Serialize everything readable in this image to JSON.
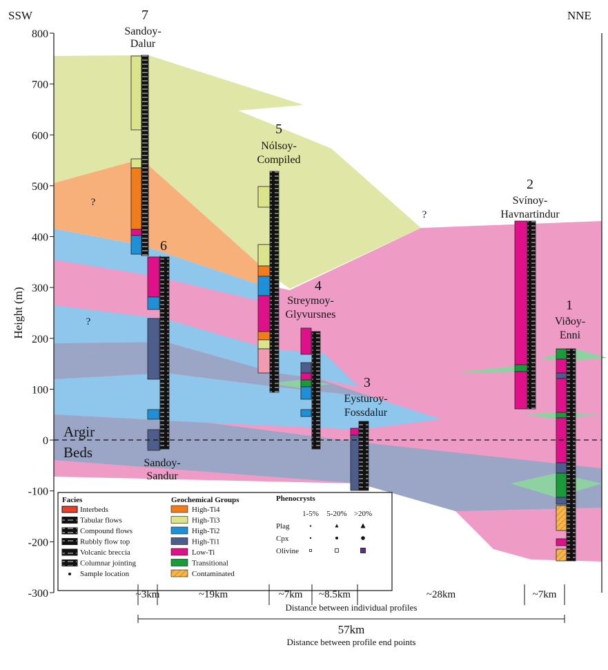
{
  "header": {
    "left": "SSW",
    "right": "NNE"
  },
  "axis": {
    "title": "Height (m)",
    "ticks": [
      800,
      700,
      600,
      500,
      400,
      300,
      200,
      100,
      0,
      -100,
      -200,
      -300
    ]
  },
  "profiles": [
    {
      "number": "7",
      "name": [
        "Sandoy-",
        "Dalur"
      ]
    },
    {
      "number": "6",
      "name": [
        "Sandoy-",
        "Sandur"
      ]
    },
    {
      "number": "5",
      "name": [
        "Nólsoy-",
        "Compiled"
      ]
    },
    {
      "number": "4",
      "name": [
        "Streymoy-",
        "Glyvursnes"
      ]
    },
    {
      "number": "3",
      "name": [
        "Eysturoy-",
        "Fossdalur"
      ]
    },
    {
      "number": "2",
      "name": [
        "Svínoy-",
        "Havnartindur"
      ]
    },
    {
      "number": "1",
      "name": [
        "Viðoy-",
        "Enni"
      ]
    }
  ],
  "unknown_marks": [
    "?",
    "?",
    "?"
  ],
  "argir": [
    "Argir",
    "Beds"
  ],
  "distances": {
    "segments": [
      "~3km",
      "~19km",
      "~7km",
      "~8.5km",
      "~28km",
      "~7km"
    ],
    "segments_label": "Distance between individual profiles",
    "total": "57km",
    "total_label": "Distance between profile end points"
  },
  "legend": {
    "facies": {
      "title": "Facies",
      "items": [
        "Interbeds",
        "Tabular flows",
        "Compound flows",
        "Rubbly flow top",
        "Volcanic breccia",
        "Columnar jointing",
        "Sample location"
      ]
    },
    "groups": {
      "title": "Geochemical Groups",
      "items": [
        "High-Ti4",
        "High-Ti3",
        "High-Ti2",
        "High-Ti1",
        "Low-Ti",
        "Transitional",
        "Contaminated"
      ]
    },
    "phenocrysts": {
      "title": "Phenocrysts",
      "columns": [
        "1-5%",
        "5-20%",
        ">20%"
      ],
      "rows": [
        "Plag",
        "Cpx",
        "Olivine"
      ]
    }
  }
}
